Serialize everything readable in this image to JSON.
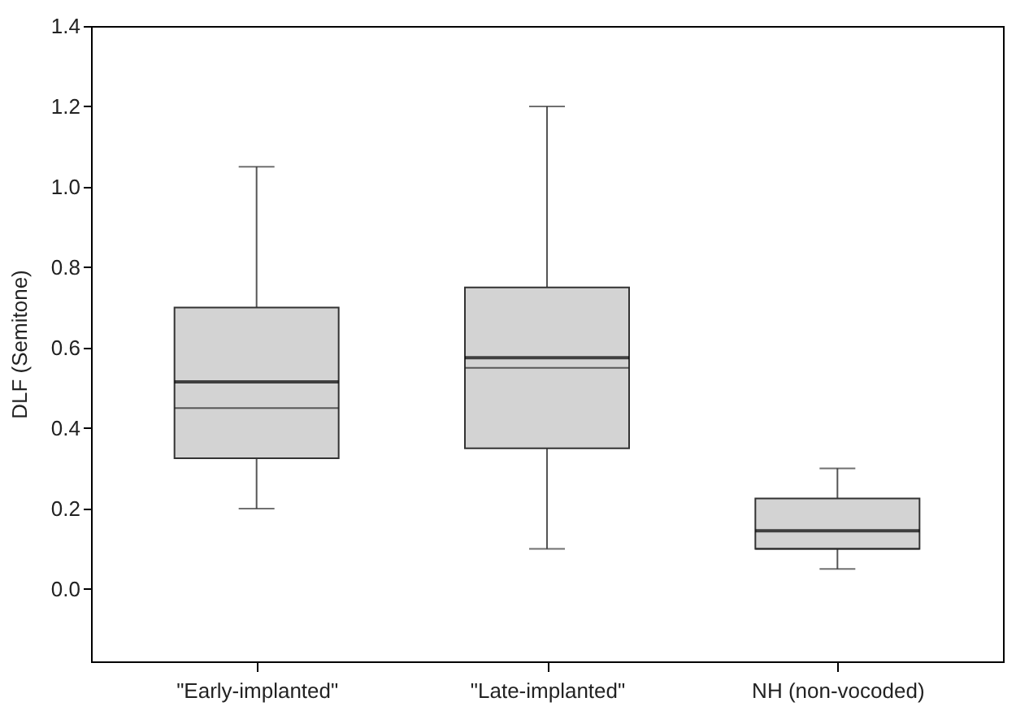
{
  "chart_data": {
    "type": "box",
    "ylabel": "DLF (Semitone)",
    "categories": [
      "\"Early-implanted\"",
      "\"Late-implanted\"",
      "NH (non-vocoded)"
    ],
    "boxes": [
      {
        "low": 0.2,
        "q1": 0.325,
        "median": 0.45,
        "q3": 0.7,
        "high": 1.05,
        "mean": 0.515
      },
      {
        "low": 0.1,
        "q1": 0.35,
        "median": 0.55,
        "q3": 0.75,
        "high": 1.2,
        "mean": 0.575
      },
      {
        "low": 0.05,
        "q1": 0.1,
        "median": 0.1,
        "q3": 0.225,
        "high": 0.3,
        "mean": 0.145
      }
    ],
    "color": "#d3d3d3",
    "ylim": [
      -0.18,
      1.4
    ],
    "yticks": [
      {
        "value": 0,
        "label": "0.0"
      },
      0.2,
      0.4,
      0.6,
      0.8,
      {
        "value": 1,
        "label": "1.0"
      },
      1.2,
      1.4
    ],
    "grid": false
  }
}
